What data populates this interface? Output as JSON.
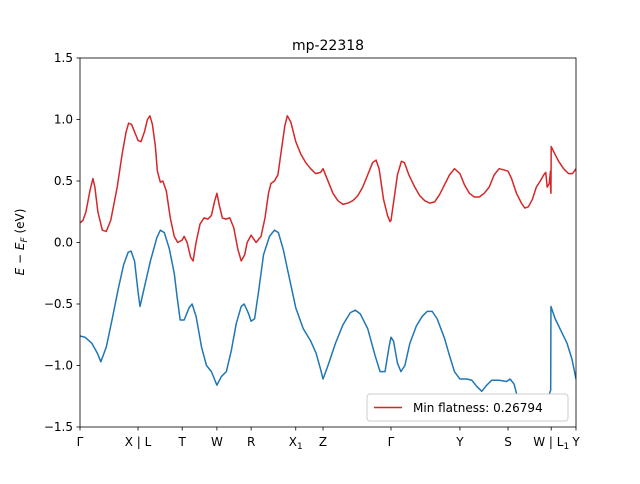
{
  "chart_data": {
    "type": "line",
    "title": "mp-22318",
    "ylabel": "E − E_F (eV)",
    "ylabel_main": "E − E",
    "ylabel_sub": "F",
    "ylabel_tail": " (eV)",
    "ylim": [
      -1.5,
      1.5
    ],
    "xlim": [
      0,
      100
    ],
    "grid": false,
    "legend_position": "lower-right",
    "yticks": [
      {
        "value": 1.5,
        "label": "1.5"
      },
      {
        "value": 1.0,
        "label": "1.0"
      },
      {
        "value": 0.5,
        "label": "0.5"
      },
      {
        "value": 0.0,
        "label": "0.0"
      },
      {
        "value": -0.5,
        "label": "−0.5"
      },
      {
        "value": -1.0,
        "label": "−1.0"
      },
      {
        "value": -1.5,
        "label": "−1.5"
      }
    ],
    "xticks": [
      {
        "value": 0,
        "label": "Γ",
        "sub": ""
      },
      {
        "value": 11.7,
        "label": "X | L",
        "sub": ""
      },
      {
        "value": 20.6,
        "label": "T",
        "sub": ""
      },
      {
        "value": 27.6,
        "label": "W",
        "sub": ""
      },
      {
        "value": 34.5,
        "label": "R",
        "sub": ""
      },
      {
        "value": 43.5,
        "label": "X",
        "sub": "1"
      },
      {
        "value": 49.0,
        "label": "Z",
        "sub": ""
      },
      {
        "value": 62.7,
        "label": "Γ",
        "sub": ""
      },
      {
        "value": 76.6,
        "label": "Y",
        "sub": ""
      },
      {
        "value": 86.3,
        "label": "S",
        "sub": ""
      },
      {
        "value": 95.0,
        "label": "W | L",
        "sub": "1"
      },
      {
        "value": 100,
        "label": "Y",
        "sub": ""
      }
    ],
    "series": [
      {
        "name": "",
        "color": "#1f77b4",
        "points": [
          [
            0,
            -0.76
          ],
          [
            1.0,
            -0.77
          ],
          [
            2.4,
            -0.82
          ],
          [
            3.5,
            -0.9
          ],
          [
            4.2,
            -0.97
          ],
          [
            5.3,
            -0.85
          ],
          [
            6.5,
            -0.62
          ],
          [
            7.7,
            -0.38
          ],
          [
            8.8,
            -0.18
          ],
          [
            9.7,
            -0.08
          ],
          [
            10.3,
            -0.07
          ],
          [
            11.0,
            -0.15
          ],
          [
            11.7,
            -0.4
          ],
          [
            12.1,
            -0.52
          ],
          [
            13.0,
            -0.36
          ],
          [
            14.2,
            -0.15
          ],
          [
            15.5,
            0.04
          ],
          [
            16.2,
            0.1
          ],
          [
            17.0,
            0.08
          ],
          [
            18.0,
            -0.05
          ],
          [
            19.0,
            -0.25
          ],
          [
            19.6,
            -0.45
          ],
          [
            20.2,
            -0.63
          ],
          [
            21.0,
            -0.63
          ],
          [
            22.0,
            -0.53
          ],
          [
            22.6,
            -0.5
          ],
          [
            23.4,
            -0.6
          ],
          [
            24.5,
            -0.85
          ],
          [
            25.5,
            -1.0
          ],
          [
            26.5,
            -1.05
          ],
          [
            27.6,
            -1.16
          ],
          [
            28.5,
            -1.09
          ],
          [
            29.5,
            -1.05
          ],
          [
            30.5,
            -0.88
          ],
          [
            31.5,
            -0.66
          ],
          [
            32.5,
            -0.52
          ],
          [
            33.1,
            -0.5
          ],
          [
            34.0,
            -0.58
          ],
          [
            34.5,
            -0.64
          ],
          [
            35.2,
            -0.62
          ],
          [
            36.0,
            -0.4
          ],
          [
            37.0,
            -0.1
          ],
          [
            38.2,
            0.05
          ],
          [
            39.2,
            0.1
          ],
          [
            40.0,
            0.08
          ],
          [
            41.0,
            -0.06
          ],
          [
            42.0,
            -0.25
          ],
          [
            43.5,
            -0.53
          ],
          [
            45.0,
            -0.7
          ],
          [
            46.5,
            -0.8
          ],
          [
            47.6,
            -0.9
          ],
          [
            48.5,
            -1.03
          ],
          [
            49.0,
            -1.11
          ],
          [
            50.0,
            -1.0
          ],
          [
            51.5,
            -0.82
          ],
          [
            53.0,
            -0.67
          ],
          [
            54.5,
            -0.57
          ],
          [
            55.5,
            -0.55
          ],
          [
            56.5,
            -0.58
          ],
          [
            58.0,
            -0.7
          ],
          [
            59.5,
            -0.92
          ],
          [
            60.5,
            -1.05
          ],
          [
            61.5,
            -1.05
          ],
          [
            62.3,
            -0.85
          ],
          [
            62.7,
            -0.77
          ],
          [
            63.2,
            -0.8
          ],
          [
            64.0,
            -0.98
          ],
          [
            64.7,
            -1.05
          ],
          [
            65.5,
            -1.0
          ],
          [
            66.5,
            -0.82
          ],
          [
            67.8,
            -0.68
          ],
          [
            69.0,
            -0.6
          ],
          [
            70.0,
            -0.56
          ],
          [
            71.0,
            -0.56
          ],
          [
            72.0,
            -0.62
          ],
          [
            73.5,
            -0.78
          ],
          [
            74.5,
            -0.92
          ],
          [
            75.5,
            -1.05
          ],
          [
            76.6,
            -1.11
          ],
          [
            78.0,
            -1.11
          ],
          [
            79.0,
            -1.12
          ],
          [
            80.0,
            -1.17
          ],
          [
            81.0,
            -1.21
          ],
          [
            82.0,
            -1.16
          ],
          [
            83.0,
            -1.12
          ],
          [
            84.5,
            -1.12
          ],
          [
            86.0,
            -1.13
          ],
          [
            86.7,
            -1.11
          ],
          [
            87.5,
            -1.15
          ],
          [
            88.5,
            -1.3
          ],
          [
            89.5,
            -1.42
          ],
          [
            90.5,
            -1.4
          ],
          [
            91.5,
            -1.33
          ],
          [
            92.5,
            -1.25
          ],
          [
            93.5,
            -1.26
          ],
          [
            94.2,
            -1.28
          ],
          [
            94.9,
            -1.2
          ],
          [
            94.95,
            -0.52
          ],
          [
            95.8,
            -0.62
          ],
          [
            97.0,
            -0.72
          ],
          [
            98.2,
            -0.82
          ],
          [
            99.2,
            -0.95
          ],
          [
            100,
            -1.11
          ]
        ]
      },
      {
        "name": "Min flatness: 0.26794",
        "color": "#d62728",
        "points": [
          [
            0,
            0.16
          ],
          [
            0.6,
            0.18
          ],
          [
            1.2,
            0.25
          ],
          [
            2.0,
            0.42
          ],
          [
            2.6,
            0.52
          ],
          [
            3.0,
            0.45
          ],
          [
            3.6,
            0.25
          ],
          [
            4.5,
            0.1
          ],
          [
            5.3,
            0.09
          ],
          [
            6.2,
            0.18
          ],
          [
            7.5,
            0.45
          ],
          [
            8.5,
            0.72
          ],
          [
            9.3,
            0.9
          ],
          [
            9.8,
            0.97
          ],
          [
            10.4,
            0.96
          ],
          [
            11.2,
            0.88
          ],
          [
            11.7,
            0.83
          ],
          [
            12.3,
            0.82
          ],
          [
            13.0,
            0.9
          ],
          [
            13.6,
            1.0
          ],
          [
            14.1,
            1.03
          ],
          [
            14.6,
            0.96
          ],
          [
            15.2,
            0.78
          ],
          [
            15.6,
            0.58
          ],
          [
            16.2,
            0.49
          ],
          [
            16.7,
            0.5
          ],
          [
            17.4,
            0.42
          ],
          [
            18.2,
            0.2
          ],
          [
            19.0,
            0.05
          ],
          [
            19.7,
            0.0
          ],
          [
            20.6,
            0.02
          ],
          [
            21.0,
            0.05
          ],
          [
            21.6,
            0.0
          ],
          [
            22.3,
            -0.12
          ],
          [
            22.8,
            -0.15
          ],
          [
            23.4,
            0.0
          ],
          [
            24.2,
            0.15
          ],
          [
            25.0,
            0.2
          ],
          [
            25.8,
            0.19
          ],
          [
            26.5,
            0.22
          ],
          [
            27.1,
            0.33
          ],
          [
            27.6,
            0.4
          ],
          [
            28.1,
            0.3
          ],
          [
            28.7,
            0.2
          ],
          [
            29.4,
            0.19
          ],
          [
            30.2,
            0.2
          ],
          [
            31.0,
            0.12
          ],
          [
            31.8,
            -0.05
          ],
          [
            32.5,
            -0.15
          ],
          [
            33.2,
            -0.1
          ],
          [
            33.7,
            0.0
          ],
          [
            34.5,
            0.06
          ],
          [
            35.0,
            0.03
          ],
          [
            35.5,
            0.0
          ],
          [
            36.5,
            0.05
          ],
          [
            37.3,
            0.2
          ],
          [
            38.0,
            0.4
          ],
          [
            38.5,
            0.48
          ],
          [
            39.2,
            0.5
          ],
          [
            39.9,
            0.55
          ],
          [
            40.6,
            0.75
          ],
          [
            41.3,
            0.95
          ],
          [
            41.8,
            1.03
          ],
          [
            42.5,
            0.98
          ],
          [
            43.5,
            0.82
          ],
          [
            44.5,
            0.72
          ],
          [
            45.5,
            0.65
          ],
          [
            46.5,
            0.6
          ],
          [
            47.5,
            0.56
          ],
          [
            48.5,
            0.57
          ],
          [
            49.0,
            0.6
          ],
          [
            49.8,
            0.52
          ],
          [
            51.0,
            0.4
          ],
          [
            52.0,
            0.34
          ],
          [
            53.0,
            0.31
          ],
          [
            54.0,
            0.32
          ],
          [
            55.0,
            0.34
          ],
          [
            56.0,
            0.38
          ],
          [
            57.0,
            0.45
          ],
          [
            58.0,
            0.55
          ],
          [
            59.0,
            0.65
          ],
          [
            59.7,
            0.67
          ],
          [
            60.3,
            0.6
          ],
          [
            61.2,
            0.35
          ],
          [
            62.0,
            0.22
          ],
          [
            62.5,
            0.17
          ],
          [
            62.7,
            0.18
          ],
          [
            63.2,
            0.32
          ],
          [
            64.0,
            0.55
          ],
          [
            64.8,
            0.66
          ],
          [
            65.4,
            0.65
          ],
          [
            66.3,
            0.55
          ],
          [
            67.5,
            0.45
          ],
          [
            68.5,
            0.38
          ],
          [
            69.5,
            0.34
          ],
          [
            70.5,
            0.32
          ],
          [
            71.5,
            0.33
          ],
          [
            72.5,
            0.39
          ],
          [
            73.5,
            0.47
          ],
          [
            74.5,
            0.55
          ],
          [
            75.5,
            0.6
          ],
          [
            76.6,
            0.56
          ],
          [
            77.5,
            0.47
          ],
          [
            78.5,
            0.4
          ],
          [
            79.5,
            0.37
          ],
          [
            80.5,
            0.37
          ],
          [
            81.5,
            0.4
          ],
          [
            82.5,
            0.45
          ],
          [
            83.5,
            0.55
          ],
          [
            84.5,
            0.6
          ],
          [
            85.5,
            0.59
          ],
          [
            86.3,
            0.58
          ],
          [
            87.0,
            0.52
          ],
          [
            88.0,
            0.4
          ],
          [
            89.0,
            0.32
          ],
          [
            89.7,
            0.28
          ],
          [
            90.4,
            0.29
          ],
          [
            91.2,
            0.35
          ],
          [
            92.0,
            0.45
          ],
          [
            92.8,
            0.5
          ],
          [
            93.5,
            0.55
          ],
          [
            93.9,
            0.57
          ],
          [
            94.2,
            0.45
          ],
          [
            94.6,
            0.48
          ],
          [
            94.85,
            0.58
          ],
          [
            94.9,
            0.42
          ],
          [
            94.95,
            0.4
          ],
          [
            95.0,
            0.78
          ],
          [
            95.6,
            0.73
          ],
          [
            96.5,
            0.66
          ],
          [
            97.5,
            0.6
          ],
          [
            98.5,
            0.56
          ],
          [
            99.3,
            0.56
          ],
          [
            100,
            0.6
          ]
        ]
      }
    ],
    "legend": {
      "label": "Min flatness: 0.26794",
      "color": "#d62728"
    }
  }
}
